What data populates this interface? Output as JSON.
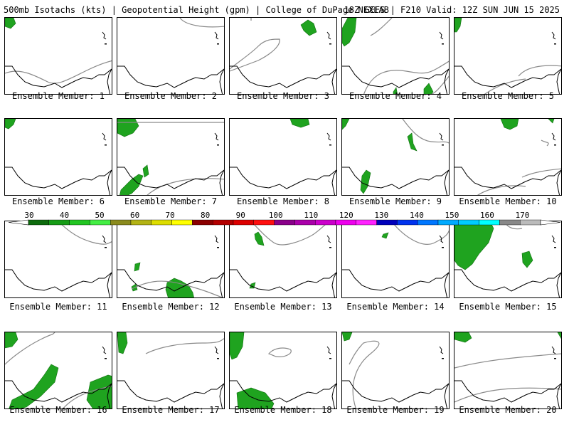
{
  "header": {
    "left_text": "500mb Isotachs (kts) | Geopotential Height (gpm) | College of DuPage NEXLAB",
    "right_text": "18Z GEFS | F210 Valid: 12Z SUN JUN 15 2025"
  },
  "panels": [
    {
      "label": "Ensemble Member: 1"
    },
    {
      "label": "Ensemble Member: 2"
    },
    {
      "label": "Ensemble Member: 3"
    },
    {
      "label": "Ensemble Member: 4"
    },
    {
      "label": "Ensemble Member: 5"
    },
    {
      "label": "Ensemble Member: 6"
    },
    {
      "label": "Ensemble Member: 7"
    },
    {
      "label": "Ensemble Member: 8"
    },
    {
      "label": "Ensemble Member: 9"
    },
    {
      "label": "Ensemble Member: 10"
    },
    {
      "label": "Ensemble Member: 11"
    },
    {
      "label": "Ensemble Member: 12"
    },
    {
      "label": "Ensemble Member: 13"
    },
    {
      "label": "Ensemble Member: 14"
    },
    {
      "label": "Ensemble Member: 15"
    },
    {
      "label": "Ensemble Member: 16"
    },
    {
      "label": "Ensemble Member: 17"
    },
    {
      "label": "Ensemble Member: 18"
    },
    {
      "label": "Ensemble Member: 19"
    },
    {
      "label": "Ensemble Member: 20"
    }
  ],
  "colorbar": {
    "labels": [
      "30",
      "40",
      "50",
      "60",
      "70",
      "80",
      "90",
      "100",
      "110",
      "120",
      "130",
      "140",
      "150",
      "160",
      "170"
    ],
    "colors": [
      "#0d6b0d",
      "#169c16",
      "#22c522",
      "#44ee44",
      "#8b8b1e",
      "#b3b315",
      "#dddd00",
      "#ffff00",
      "#8b0000",
      "#b30000",
      "#dd0000",
      "#ff1010",
      "#8a008a",
      "#aa00aa",
      "#cc00cc",
      "#ee00ee",
      "#ff22ff",
      "#0000bb",
      "#0033ee",
      "#0077ff",
      "#00aaff",
      "#00ccff",
      "#00ffff",
      "#888888",
      "#bbbbbb"
    ]
  },
  "colors": {
    "coastline": "#000000",
    "height_contour": "#8a8a8a",
    "isotach_fill": "#1fa31f"
  }
}
